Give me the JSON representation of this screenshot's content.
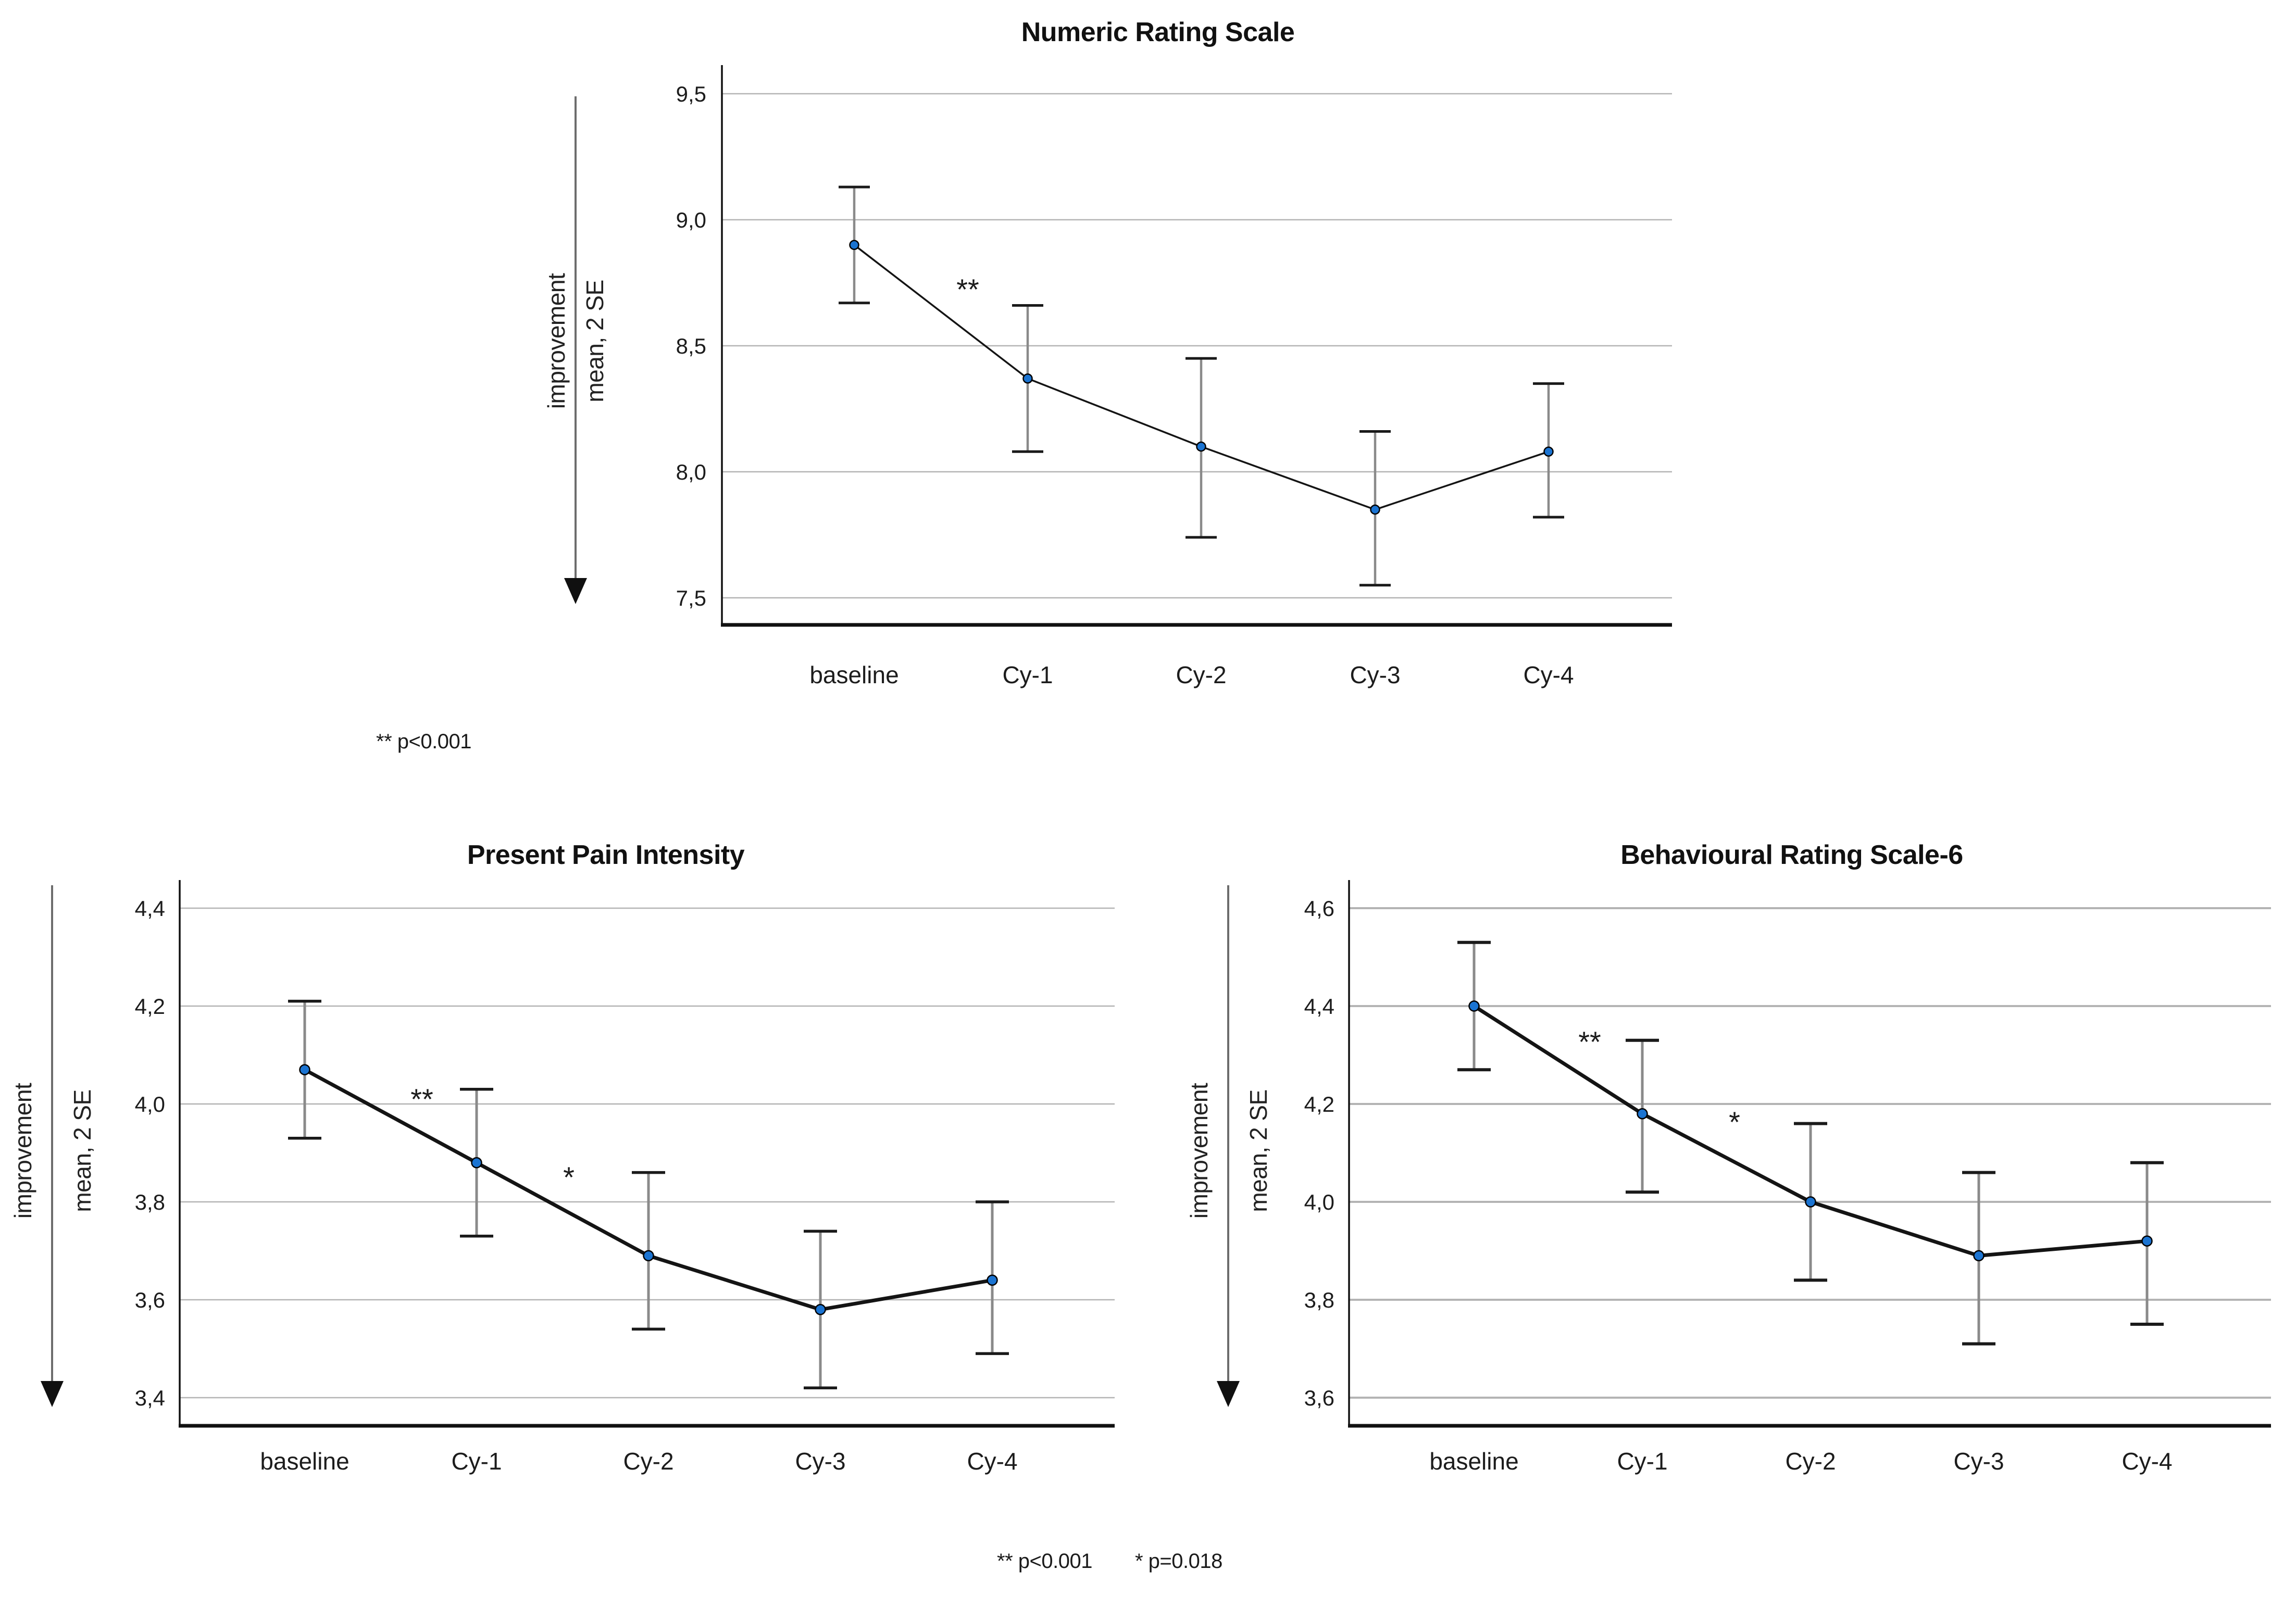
{
  "figure": {
    "description": "Three line charts of pain rating scales over chemotherapy cycles, mean with 2 SE error bars"
  },
  "colors": {
    "marker_fill": "#1b74d2",
    "marker_stroke": "#000000",
    "trend_line": "#141414",
    "error_stem": "#8a8a8a",
    "error_cap": "#1a1a1a",
    "grid_line": "#b4b4b4",
    "axis_line": "#111111"
  },
  "chart_data": [
    {
      "type": "line",
      "title": "Numeric Rating Scale",
      "ylabel_arrow": "improvement",
      "ylabel": "mean, 2 SE",
      "categories": [
        "baseline",
        "Cy-1",
        "Cy-2",
        "Cy-3",
        "Cy-4"
      ],
      "series": [
        {
          "name": "mean, 2 SE",
          "values": [
            8.9,
            8.37,
            8.1,
            7.85,
            8.08
          ]
        }
      ],
      "error_low": [
        8.67,
        8.08,
        7.74,
        7.55,
        7.82
      ],
      "error_high": [
        9.13,
        8.66,
        8.45,
        8.16,
        8.35
      ],
      "y_ticks": [
        9.5,
        9.0,
        8.5,
        8.0,
        7.5
      ],
      "y_tick_labels": [
        "9,5",
        "9,0",
        "8,5",
        "8,0",
        "7,5"
      ],
      "ylim": [
        7.39,
        9.61
      ],
      "grid": true,
      "legend": false,
      "annotations": [
        {
          "text": "**",
          "between": [
            0,
            1
          ]
        }
      ]
    },
    {
      "type": "line",
      "title": "Present Pain Intensity",
      "ylabel_arrow": "improvement",
      "ylabel": "mean, 2 SE",
      "categories": [
        "baseline",
        "Cy-1",
        "Cy-2",
        "Cy-3",
        "Cy-4"
      ],
      "series": [
        {
          "name": "mean, 2 SE",
          "values": [
            4.07,
            3.88,
            3.69,
            3.58,
            3.64
          ]
        }
      ],
      "error_low": [
        3.93,
        3.73,
        3.54,
        3.42,
        3.49
      ],
      "error_high": [
        4.21,
        4.03,
        3.86,
        3.74,
        3.8
      ],
      "y_ticks": [
        4.4,
        4.2,
        4.0,
        3.8,
        3.6,
        3.4
      ],
      "y_tick_labels": [
        "4,4",
        "4,2",
        "4,0",
        "3,8",
        "3,6",
        "3,4"
      ],
      "ylim": [
        3.34,
        4.46
      ],
      "grid": true,
      "legend": false,
      "annotations": [
        {
          "text": "**",
          "between": [
            0,
            1
          ]
        },
        {
          "text": "*",
          "between": [
            1,
            2
          ]
        }
      ]
    },
    {
      "type": "line",
      "title": "Behavioural Rating Scale-6",
      "ylabel_arrow": "improvement",
      "ylabel": "mean, 2 SE",
      "categories": [
        "baseline",
        "Cy-1",
        "Cy-2",
        "Cy-3",
        "Cy-4"
      ],
      "series": [
        {
          "name": "mean, 2 SE",
          "values": [
            4.4,
            4.18,
            4.0,
            3.89,
            3.92
          ]
        }
      ],
      "error_low": [
        4.27,
        4.02,
        3.84,
        3.71,
        3.75
      ],
      "error_high": [
        4.53,
        4.33,
        4.16,
        4.06,
        4.08
      ],
      "y_ticks": [
        4.6,
        4.4,
        4.2,
        4.0,
        3.8,
        3.6
      ],
      "y_tick_labels": [
        "4,6",
        "4,4",
        "4,2",
        "4,0",
        "3,8",
        "3,6"
      ],
      "ylim": [
        3.54,
        4.66
      ],
      "grid": true,
      "legend": false,
      "annotations": [
        {
          "text": "**",
          "between": [
            0,
            1
          ]
        },
        {
          "text": "*",
          "between": [
            1,
            2
          ]
        }
      ]
    }
  ],
  "footnotes": {
    "top": "** p<0.001",
    "bottom": [
      "** p<0.001",
      "* p=0.018"
    ]
  }
}
